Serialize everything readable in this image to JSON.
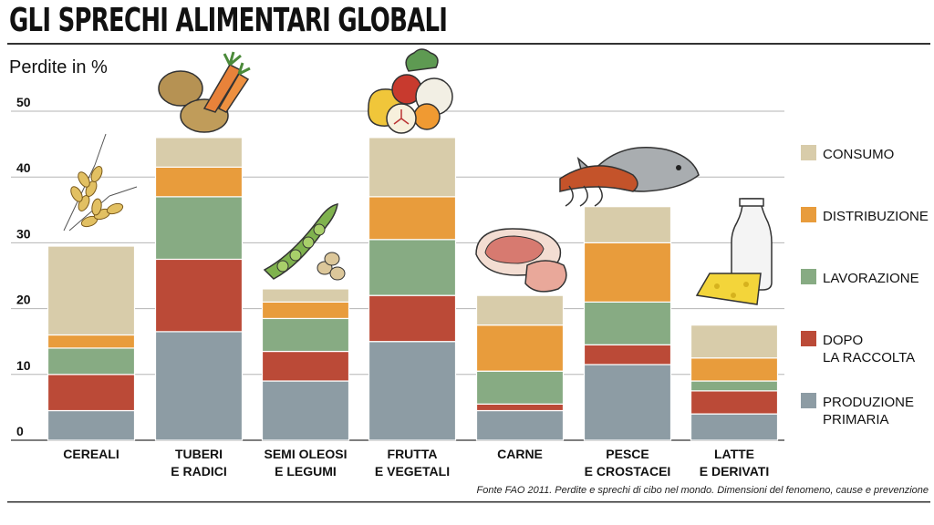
{
  "title": "GLI SPRECHI ALIMENTARI GLOBALI",
  "colors": {
    "background": "#ffffff",
    "gridline": "#b5b5b5",
    "axis": "#555555"
  },
  "illustrations": [
    "wheat-icon",
    "potato-carrot-icon",
    "peas-nuts-icon",
    "fruit-vegetables-icon",
    "meat-icon",
    "fish-shrimp-icon",
    "milk-cheese-icon"
  ],
  "chart_data": {
    "type": "bar",
    "stacked": true,
    "title": "GLI SPRECHI ALIMENTARI GLOBALI",
    "ylabel": "Perdite in %",
    "xlabel": "",
    "ylim": [
      0,
      50
    ],
    "yticks": [
      0,
      10,
      20,
      30,
      40,
      50
    ],
    "grid": true,
    "legend_position": "right",
    "categories": [
      [
        "CEREALI"
      ],
      [
        "TUBERI",
        "E RADICI"
      ],
      [
        "SEMI OLEOSI",
        "E LEGUMI"
      ],
      [
        "FRUTTA",
        "E VEGETALI"
      ],
      [
        "CARNE"
      ],
      [
        "PESCE",
        "E CROSTACEI"
      ],
      [
        "LATTE",
        "E DERIVATI"
      ]
    ],
    "series": [
      {
        "name": [
          "PRODUZIONE",
          "PRIMARIA"
        ],
        "color": "#8d9ca4",
        "values": [
          4.5,
          16.5,
          9,
          15,
          4.5,
          11.5,
          4
        ]
      },
      {
        "name": [
          "DOPO",
          "LA RACCOLTA"
        ],
        "color": "#bb4a37",
        "values": [
          5.5,
          11,
          4.5,
          7,
          1,
          3,
          3.5
        ]
      },
      {
        "name": [
          "LAVORAZIONE"
        ],
        "color": "#87ab83",
        "values": [
          4,
          9.5,
          5,
          8.5,
          5,
          6.5,
          1.5
        ]
      },
      {
        "name": [
          "DISTRIBUZIONE"
        ],
        "color": "#e89c3c",
        "values": [
          2,
          4.5,
          2.5,
          6.5,
          7,
          9,
          3.5
        ]
      },
      {
        "name": [
          "CONSUMO"
        ],
        "color": "#d8ccaa",
        "values": [
          13.5,
          4.5,
          2,
          9,
          4.5,
          5.5,
          5
        ]
      }
    ],
    "legend_order": [
      4,
      3,
      2,
      1,
      0
    ]
  },
  "source": "Fonte FAO 2011. Perdite e sprechi di cibo nel mondo. Dimensioni del fenomeno, cause e prevenzione"
}
